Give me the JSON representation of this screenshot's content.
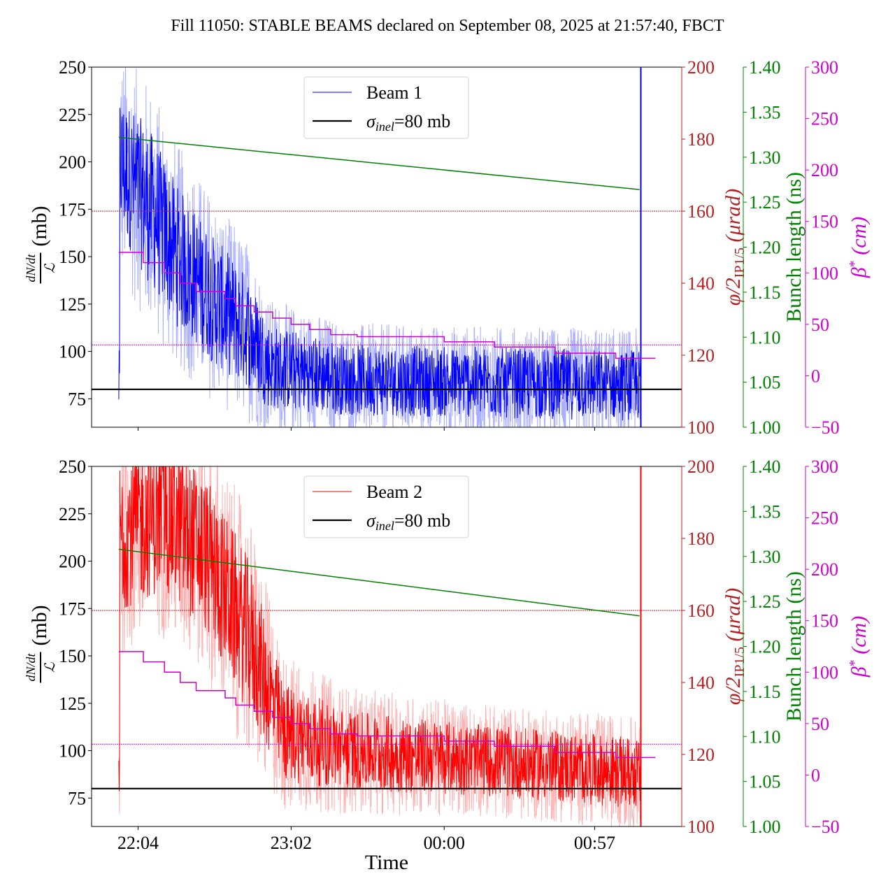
{
  "chart_data": {
    "title": "Fill 11050: STABLE BEAMS declared on September 08, 2025 at 21:57:40, FBCT",
    "xlabel": "Time",
    "x_ticks": [
      {
        "label": "22:04",
        "minutes": 0
      },
      {
        "label": "23:02",
        "minutes": 58
      },
      {
        "label": "00:00",
        "minutes": 116
      },
      {
        "label": "00:57",
        "minutes": 173
      }
    ],
    "x_range_minutes": [
      -17.6,
      206
    ],
    "panels": [
      {
        "type": "line",
        "name": "beam1",
        "legend": {
          "position": "top-center",
          "entries": [
            "Beam 1",
            "σinel=80 mb"
          ]
        },
        "series_label": "Beam 1",
        "series_color": "#0000ff",
        "band_color": "#aab0ff",
        "ylabel": "dN/dt / ℒ (mb)",
        "ylim": [
          60,
          250
        ],
        "yticks": [
          75,
          100,
          125,
          150,
          175,
          200,
          225,
          250
        ],
        "reference_line": {
          "label": "σinel=80 mb",
          "value": 80
        },
        "data_start_min": -7.3,
        "data_end_min": 190.5,
        "spike_min": 190.5,
        "cross_section_profile": [
          {
            "t": -7,
            "mean": 200,
            "spread": 50
          },
          {
            "t": 5,
            "mean": 175,
            "spread": 55
          },
          {
            "t": 15,
            "mean": 150,
            "spread": 50
          },
          {
            "t": 30,
            "mean": 125,
            "spread": 45
          },
          {
            "t": 42,
            "mean": 110,
            "spread": 40
          },
          {
            "t": 50,
            "mean": 92,
            "spread": 30
          },
          {
            "t": 80,
            "mean": 85,
            "spread": 25
          },
          {
            "t": 190,
            "mean": 82,
            "spread": 25
          }
        ]
      },
      {
        "type": "line",
        "name": "beam2",
        "legend": {
          "position": "top-center",
          "entries": [
            "Beam 2",
            "σinel=80 mb"
          ]
        },
        "series_label": "Beam 2",
        "series_color": "#ff0000",
        "band_color": "#ffb0b0",
        "ylabel": "dN/dt / ℒ (mb)",
        "ylim": [
          60,
          250
        ],
        "yticks": [
          75,
          100,
          125,
          150,
          175,
          200,
          225,
          250
        ],
        "reference_line": {
          "label": "σinel=80 mb",
          "value": 80
        },
        "data_start_min": -7.3,
        "data_end_min": 190.5,
        "spike_min": 190.5,
        "cross_section_profile": [
          {
            "t": -7,
            "mean": 215,
            "spread": 55
          },
          {
            "t": 10,
            "mean": 225,
            "spread": 55
          },
          {
            "t": 25,
            "mean": 205,
            "spread": 55
          },
          {
            "t": 42,
            "mean": 160,
            "spread": 55
          },
          {
            "t": 55,
            "mean": 110,
            "spread": 35
          },
          {
            "t": 80,
            "mean": 100,
            "spread": 28
          },
          {
            "t": 130,
            "mean": 95,
            "spread": 25
          },
          {
            "t": 190,
            "mean": 88,
            "spread": 25
          }
        ]
      }
    ],
    "crossing_angle_axis": {
      "label": "φ/2 IP1/5 (μrad)",
      "color": "#b22222",
      "ylim": [
        100,
        200
      ],
      "yticks": [
        100,
        120,
        140,
        160,
        180,
        200
      ],
      "reference_value": 160
    },
    "bunch_length_axis": {
      "label": "Bunch length (ns)",
      "color": "#008000",
      "ylim": [
        1.0,
        1.4
      ],
      "yticks": [
        "1.00",
        "1.05",
        "1.10",
        "1.15",
        "1.20",
        "1.25",
        "1.30",
        "1.35",
        "1.40"
      ],
      "beam1": {
        "start_min": -7.3,
        "end_min": 190,
        "start": 1.322,
        "end": 1.264
      },
      "beam2": {
        "start_min": -7.3,
        "end_min": 190,
        "start": 1.308,
        "end": 1.234
      }
    },
    "beta_star_axis": {
      "label": "β* (cm)",
      "color": "#cc00cc",
      "ylim": [
        -50,
        300
      ],
      "yticks": [
        "−50",
        "0",
        "50",
        "100",
        "150",
        "200",
        "250",
        "300"
      ],
      "reference_value": 30,
      "steps": [
        {
          "from": -7.3,
          "to": 2,
          "value": 120
        },
        {
          "from": 2,
          "to": 10,
          "value": 110
        },
        {
          "from": 10,
          "to": 16,
          "value": 100
        },
        {
          "from": 16,
          "to": 22,
          "value": 90
        },
        {
          "from": 22,
          "to": 33,
          "value": 82
        },
        {
          "from": 33,
          "to": 37,
          "value": 75
        },
        {
          "from": 37,
          "to": 44,
          "value": 68
        },
        {
          "from": 44,
          "to": 51,
          "value": 62
        },
        {
          "from": 51,
          "to": 58,
          "value": 56
        },
        {
          "from": 58,
          "to": 65,
          "value": 50
        },
        {
          "from": 65,
          "to": 73,
          "value": 45
        },
        {
          "from": 73,
          "to": 83,
          "value": 40
        },
        {
          "from": 83,
          "to": 116,
          "value": 38
        },
        {
          "from": 116,
          "to": 135,
          "value": 33
        },
        {
          "from": 135,
          "to": 158,
          "value": 28
        },
        {
          "from": 158,
          "to": 181,
          "value": 22
        },
        {
          "from": 181,
          "to": 196,
          "value": 17
        }
      ]
    }
  }
}
